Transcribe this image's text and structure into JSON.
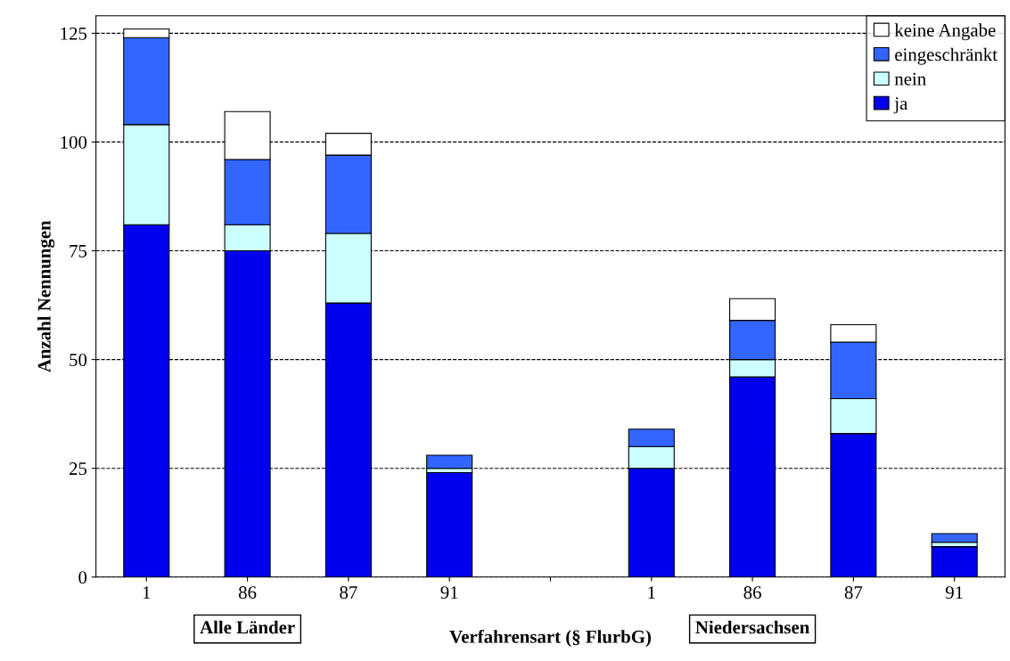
{
  "chart_data": {
    "type": "bar",
    "stacked": true,
    "xlabel": "Verfahrensart (§ FlurbG)",
    "ylabel": "Anzahl Nennungen",
    "categories": [
      "1",
      "86",
      "87",
      "91",
      null,
      "1",
      "86",
      "87",
      "91"
    ],
    "series": [
      {
        "name": "ja",
        "color": "#0000ee",
        "values": [
          81,
          75,
          63,
          24,
          null,
          25,
          46,
          33,
          7
        ]
      },
      {
        "name": "nein",
        "color": "#ccffff",
        "values": [
          23,
          6,
          16,
          1,
          null,
          5,
          4,
          8,
          1
        ]
      },
      {
        "name": "eingeschränkt",
        "color": "#3366ff",
        "values": [
          20,
          15,
          18,
          3,
          null,
          4,
          9,
          13,
          2
        ]
      },
      {
        "name": "keine Angabe",
        "color": "#ffffff",
        "values": [
          2,
          11,
          5,
          0,
          null,
          0,
          5,
          4,
          0
        ]
      }
    ],
    "ylim": [
      0,
      129
    ],
    "yticks": [
      0,
      25,
      50,
      75,
      100,
      125
    ],
    "grid": "y",
    "line_style": "dashed",
    "legend": "top right",
    "annotations": [
      "Alle Länder",
      "Niedersachsen"
    ]
  }
}
